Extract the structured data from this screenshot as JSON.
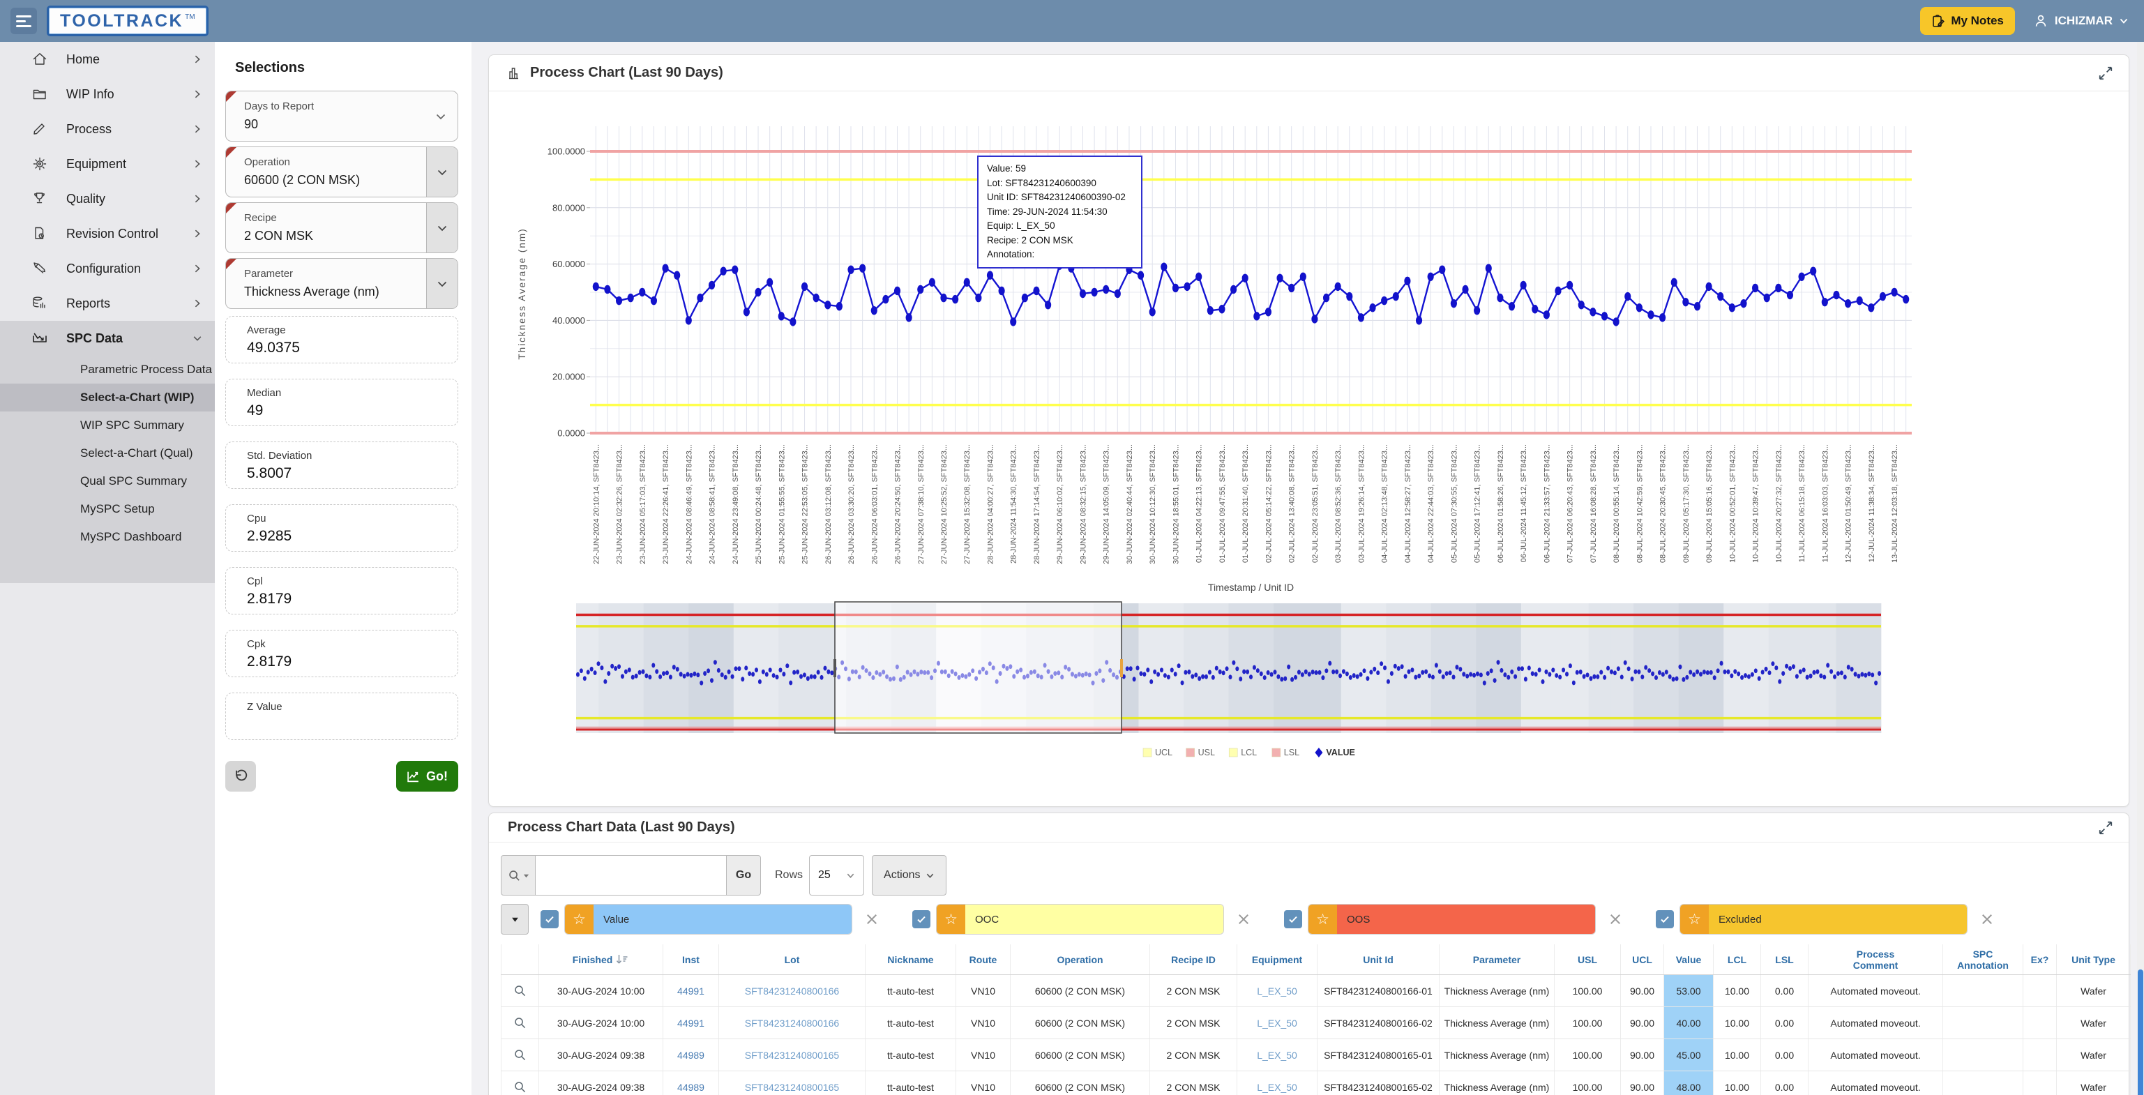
{
  "topbar": {
    "logo": "TOOLTRACK",
    "tm": "TM",
    "my_notes": "My Notes",
    "user": "ICHIZMAR"
  },
  "sidebar": {
    "items": [
      {
        "label": "Home",
        "icon": "home"
      },
      {
        "label": "WIP Info",
        "icon": "folder"
      },
      {
        "label": "Process",
        "icon": "pencil"
      },
      {
        "label": "Equipment",
        "icon": "gear"
      },
      {
        "label": "Quality",
        "icon": "trophy"
      },
      {
        "label": "Revision Control",
        "icon": "doc"
      },
      {
        "label": "Configuration",
        "icon": "config"
      },
      {
        "label": "Reports",
        "icon": "reports"
      }
    ],
    "spc": {
      "label": "SPC Data",
      "icon": "chart"
    },
    "spc_children": [
      "Parametric Process Data",
      "Select-a-Chart (WIP)",
      "WIP SPC Summary",
      "Select-a-Chart (Qual)",
      "Qual SPC Summary",
      "MySPC Setup",
      "MySPC Dashboard"
    ],
    "selected": "Select-a-Chart (WIP)"
  },
  "selections": {
    "title": "Selections",
    "fields": [
      {
        "label": "Days to Report",
        "value": "90",
        "lov": false
      },
      {
        "label": "Operation",
        "value": "60600 (2 CON MSK)",
        "lov": true
      },
      {
        "label": "Recipe",
        "value": "2 CON MSK",
        "lov": true
      },
      {
        "label": "Parameter",
        "value": "Thickness Average (nm)",
        "lov": true
      }
    ],
    "stats": [
      {
        "label": "Average",
        "value": "49.0375"
      },
      {
        "label": "Median",
        "value": "49"
      },
      {
        "label": "Std. Deviation",
        "value": "5.8007"
      },
      {
        "label": "Cpu",
        "value": "2.9285"
      },
      {
        "label": "Cpl",
        "value": "2.8179"
      },
      {
        "label": "Cpk",
        "value": "2.8179"
      },
      {
        "label": "Z Value",
        "value": ""
      }
    ],
    "go_label": "Go!"
  },
  "chart_panel": {
    "title": "Process Chart (Last 90 Days)"
  },
  "chart_data": {
    "type": "line",
    "ylabel": "Thickness Average (nm)",
    "xlabel": "Timestamp / Unit ID",
    "ylim": [
      0,
      110
    ],
    "yticks": [
      "0.0000",
      "20.0000",
      "40.0000",
      "60.0000",
      "80.0000",
      "100.0000"
    ],
    "usl": 100,
    "ucl": 90,
    "lcl": 10,
    "lsl": 0,
    "legend": [
      "UCL",
      "USL",
      "LCL",
      "LSL",
      "VALUE"
    ],
    "label_suffix": ", SFT8423...",
    "values": [
      52,
      51,
      47,
      48,
      50,
      47,
      58.5,
      56,
      40,
      48,
      52.5,
      57.5,
      58,
      43,
      50,
      53.5,
      41.5,
      39.5,
      52,
      48,
      45.5,
      45,
      58,
      58.5,
      43.5,
      47.5,
      50.5,
      41,
      51,
      53.5,
      48,
      47.5,
      53.5,
      48,
      56,
      50.5,
      39.5,
      48,
      50.5,
      45.5,
      59.5,
      58.5,
      49.5,
      50,
      51,
      49.5,
      58,
      56,
      43,
      59,
      51.5,
      52,
      55.5,
      43.5,
      44,
      51,
      55,
      41.5,
      43,
      55,
      51.5,
      55.5,
      40.5,
      48,
      52,
      48.5,
      41,
      44.5,
      47,
      48.5,
      54,
      40,
      55.5,
      58,
      46,
      51,
      43.5,
      58.5,
      48,
      45,
      52.5,
      44,
      42,
      50.5,
      52.5,
      45.5,
      43,
      41.5,
      39.5,
      48.5,
      44.5,
      42,
      41,
      53.5,
      46.5,
      45,
      52,
      48.5,
      44.5,
      46,
      51.5,
      48,
      51.5,
      49,
      55.5,
      57.5,
      46.5,
      49,
      46,
      47,
      44.5,
      48.5,
      50,
      47.5
    ],
    "x_labels": [
      "22-JUN-2024 20:10:14",
      "23-JUN-2024 02:32:26",
      "23-JUN-2024 05:17:03",
      "23-JUN-2024 22:26:41",
      "24-JUN-2024 08:46:49",
      "24-JUN-2024 08:58:41",
      "24-JUN-2024 23:49:08",
      "25-JUN-2024 00:24:48",
      "25-JUN-2024 01:55:55",
      "25-JUN-2024 22:53:05",
      "26-JUN-2024 03:12:08",
      "26-JUN-2024 03:30:20",
      "26-JUN-2024 06:03:01",
      "26-JUN-2024 20:24:50",
      "27-JUN-2024 07:38:10",
      "27-JUN-2024 10:25:52",
      "27-JUN-2024 15:32:08",
      "28-JUN-2024 04:00:27",
      "28-JUN-2024 11:54:30",
      "28-JUN-2024 17:14:54",
      "29-JUN-2024 06:10:02",
      "29-JUN-2024 08:32:15",
      "29-JUN-2024 14:05:09",
      "30-JUN-2024 02:40:44",
      "30-JUN-2024 10:12:30",
      "30-JUN-2024 18:55:01",
      "01-JUL-2024 04:22:13",
      "01-JUL-2024 09:47:55",
      "01-JUL-2024 20:31:40",
      "02-JUL-2024 05:14:22",
      "02-JUL-2024 13:40:08",
      "02-JUL-2024 23:05:51",
      "03-JUL-2024 08:52:36",
      "03-JUL-2024 19:26:14",
      "04-JUL-2024 02:13:48",
      "04-JUL-2024 12:58:27",
      "04-JUL-2024 22:44:03",
      "05-JUL-2024 07:30:55",
      "05-JUL-2024 17:12:41",
      "06-JUL-2024 01:58:26",
      "06-JUL-2024 11:45:12",
      "06-JUL-2024 21:33:57",
      "07-JUL-2024 06:20:43",
      "07-JUL-2024 16:08:28",
      "08-JUL-2024 00:55:14",
      "08-JUL-2024 10:42:59",
      "08-JUL-2024 20:30:45",
      "09-JUL-2024 05:17:30",
      "09-JUL-2024 15:05:16",
      "10-JUL-2024 00:52:01",
      "10-JUL-2024 10:39:47",
      "10-JUL-2024 20:27:32",
      "11-JUL-2024 06:15:18",
      "11-JUL-2024 16:03:03",
      "12-JUL-2024 01:50:49",
      "12-JUL-2024 11:38:34",
      "13-JUL-2024 12:03:18"
    ],
    "tooltip": {
      "lines": [
        "Value: 59",
        "Lot: SFT84231240600390",
        "Unit ID: SFT84231240600390-02",
        "Time: 29-JUN-2024 11:54:30",
        "Equip: L_EX_50",
        "Recipe: 2 CON MSK",
        "Annotation:"
      ]
    }
  },
  "table_panel": {
    "title": "Process Chart Data (Last 90 Days)",
    "search_go": "Go",
    "rows_label": "Rows",
    "rows_value": "25",
    "actions_label": "Actions",
    "chips": [
      {
        "label": "Value",
        "color": "#8ec7f7"
      },
      {
        "label": "OOC",
        "color": "#ffffa3"
      },
      {
        "label": "OOS",
        "color": "#f4654a"
      },
      {
        "label": "Excluded",
        "color": "#f6c52e"
      }
    ],
    "columns": [
      "",
      "Finished",
      "Inst",
      "Lot",
      "Nickname",
      "Route",
      "Operation",
      "Recipe ID",
      "Equipment",
      "Unit Id",
      "Parameter",
      "USL",
      "UCL",
      "Value",
      "LCL",
      "LSL",
      "Process Comment",
      "SPC Annotation",
      "Ex?",
      "Unit Type"
    ],
    "rows": [
      [
        "30-AUG-2024 10:00",
        "44991",
        "SFT84231240800166",
        "tt-auto-test",
        "VN10",
        "60600 (2 CON MSK)",
        "2 CON MSK",
        "L_EX_50",
        "SFT84231240800166-01",
        "Thickness Average (nm)",
        "100.00",
        "90.00",
        "53.00",
        "10.00",
        "0.00",
        "Automated moveout.",
        "",
        "",
        "Wafer"
      ],
      [
        "30-AUG-2024 10:00",
        "44991",
        "SFT84231240800166",
        "tt-auto-test",
        "VN10",
        "60600 (2 CON MSK)",
        "2 CON MSK",
        "L_EX_50",
        "SFT84231240800166-02",
        "Thickness Average (nm)",
        "100.00",
        "90.00",
        "40.00",
        "10.00",
        "0.00",
        "Automated moveout.",
        "",
        "",
        "Wafer"
      ],
      [
        "30-AUG-2024 09:38",
        "44989",
        "SFT84231240800165",
        "tt-auto-test",
        "VN10",
        "60600 (2 CON MSK)",
        "2 CON MSK",
        "L_EX_50",
        "SFT84231240800165-01",
        "Thickness Average (nm)",
        "100.00",
        "90.00",
        "45.00",
        "10.00",
        "0.00",
        "Automated moveout.",
        "",
        "",
        "Wafer"
      ],
      [
        "30-AUG-2024 09:38",
        "44989",
        "SFT84231240800165",
        "tt-auto-test",
        "VN10",
        "60600 (2 CON MSK)",
        "2 CON MSK",
        "L_EX_50",
        "SFT84231240800165-02",
        "Thickness Average (nm)",
        "100.00",
        "90.00",
        "48.00",
        "10.00",
        "0.00",
        "Automated moveout.",
        "",
        "",
        "Wafer"
      ]
    ]
  }
}
